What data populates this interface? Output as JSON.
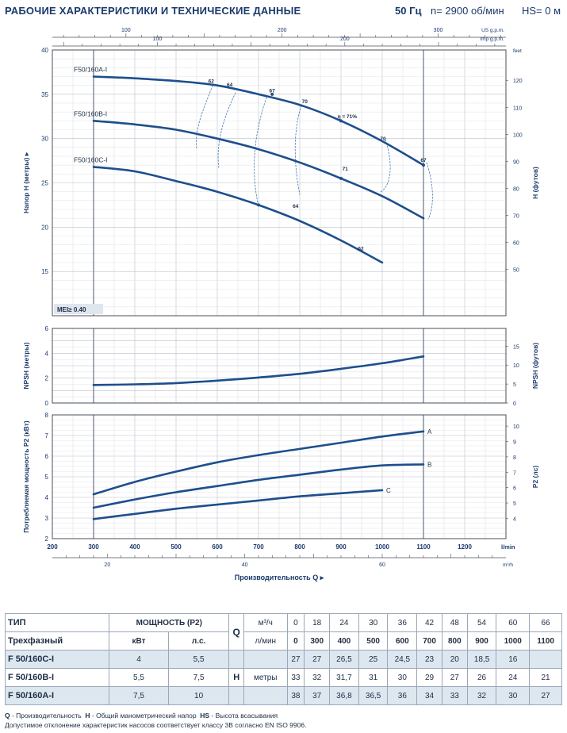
{
  "header": {
    "title": "РАБОЧИЕ ХАРАКТЕРИСТИКИ И ТЕХНИЧЕСКИЕ ДАННЫЕ",
    "frequency": "50 Гц",
    "speed": "n= 2900 об/мин",
    "suction_head": "HS= 0 м"
  },
  "chart_data": [
    {
      "type": "line",
      "id": "head",
      "ylabel": "Напор Н (метры)",
      "ylabel_right": "H (футов)",
      "x_unit": "l/min",
      "xlim": [
        200,
        1300
      ],
      "ylim": [
        10,
        40
      ],
      "y_ticks": [
        15,
        20,
        25,
        30,
        35,
        40
      ],
      "right_ticks": [
        50,
        60,
        70,
        80,
        90,
        100,
        110,
        120
      ],
      "right_unit": "feet",
      "top_axis_us_label": "US g.p.m.",
      "top_axis_us_ticks": [
        100,
        200,
        300
      ],
      "top_axis_imp_label": "Imp g.p.m.",
      "top_axis_imp_ticks": [
        100,
        200
      ],
      "mei_label": "MEI≥ 0.40",
      "grid": true,
      "series": [
        {
          "name": "F50/160A-I",
          "x": [
            300,
            400,
            500,
            600,
            700,
            800,
            900,
            1000,
            1100
          ],
          "y": [
            37,
            36.8,
            36.5,
            36,
            35,
            33.8,
            32,
            29.7,
            27
          ]
        },
        {
          "name": "F50/160B-I",
          "x": [
            300,
            400,
            500,
            600,
            700,
            800,
            900,
            1000,
            1100
          ],
          "y": [
            32,
            31.6,
            31,
            30,
            28.8,
            27.3,
            25.5,
            23.5,
            21
          ]
        },
        {
          "name": "F50/160C-I",
          "x": [
            300,
            400,
            500,
            600,
            700,
            800,
            900,
            1000
          ],
          "y": [
            26.8,
            26.3,
            25.2,
            24,
            22.5,
            20.7,
            18.5,
            16
          ]
        }
      ],
      "efficiency_labels": [
        {
          "label": "62",
          "x": 585,
          "y": 36.2
        },
        {
          "label": "64",
          "x": 630,
          "y": 35.8
        },
        {
          "label": "67",
          "x": 733,
          "y": 35.1
        },
        {
          "label": "70",
          "x": 812,
          "y": 33.9
        },
        {
          "label": "η = 71%",
          "x": 915,
          "y": 32.2
        },
        {
          "label": "70",
          "x": 1002,
          "y": 29.7
        },
        {
          "label": "67",
          "x": 1100,
          "y": 27.3
        },
        {
          "label": "71",
          "x": 910,
          "y": 26.3
        },
        {
          "label": "64",
          "x": 790,
          "y": 22.1
        },
        {
          "label": "62",
          "x": 948,
          "y": 17.3
        }
      ]
    },
    {
      "type": "line",
      "id": "npsh",
      "ylabel": "NPSH (метры)",
      "ylabel_right": "NPSH (футов)",
      "ylim": [
        0,
        6
      ],
      "y_ticks": [
        0,
        2,
        4,
        6
      ],
      "right_ticks": [
        0,
        5,
        10,
        15
      ],
      "series": [
        {
          "name": "NPSH",
          "x": [
            300,
            400,
            500,
            600,
            700,
            800,
            900,
            1000,
            1100
          ],
          "y": [
            1.45,
            1.5,
            1.6,
            1.8,
            2.05,
            2.35,
            2.75,
            3.2,
            3.75
          ]
        }
      ]
    },
    {
      "type": "line",
      "id": "power",
      "ylabel": "Потребляемая мощность P2 (кВт)",
      "ylabel_right": "P2 (лс)",
      "xlabel": "Производительность Q",
      "x_unit": "l/min",
      "x_ticks": [
        200,
        300,
        400,
        500,
        600,
        700,
        800,
        900,
        1000,
        1100,
        1200
      ],
      "x_unit_bottom": "m³/h",
      "x_ticks_m3h": [
        20,
        40,
        60
      ],
      "ylim": [
        2,
        8
      ],
      "y_ticks": [
        2,
        3,
        4,
        5,
        6,
        7,
        8
      ],
      "right_ticks": [
        4,
        5,
        6,
        7,
        8,
        9,
        10
      ],
      "series": [
        {
          "name": "A",
          "x": [
            300,
            400,
            500,
            600,
            700,
            800,
            900,
            1000,
            1100
          ],
          "y": [
            4.15,
            4.75,
            5.25,
            5.7,
            6.05,
            6.35,
            6.65,
            6.95,
            7.2
          ]
        },
        {
          "name": "B",
          "x": [
            300,
            400,
            500,
            600,
            700,
            800,
            900,
            1000,
            1100
          ],
          "y": [
            3.5,
            3.9,
            4.25,
            4.55,
            4.85,
            5.1,
            5.35,
            5.55,
            5.6
          ]
        },
        {
          "name": "C",
          "x": [
            300,
            400,
            500,
            600,
            700,
            800,
            900,
            1000
          ],
          "y": [
            2.95,
            3.2,
            3.45,
            3.65,
            3.85,
            4.05,
            4.2,
            4.35
          ]
        }
      ]
    }
  ],
  "table": {
    "type_label": "ТИП",
    "phase_label": "Трехфазный",
    "power_label": "МОЩНОСТЬ (P2)",
    "kw_label": "кВт",
    "hp_label": "л.с.",
    "q_label": "Q",
    "q_unit1": "м³/ч",
    "q_unit2": "л/мин",
    "h_label": "H",
    "h_unit": "метры",
    "q_m3h": [
      "0",
      "18",
      "24",
      "30",
      "36",
      "42",
      "48",
      "54",
      "60",
      "66"
    ],
    "q_lmin": [
      "0",
      "300",
      "400",
      "500",
      "600",
      "700",
      "800",
      "900",
      "1000",
      "1100"
    ],
    "rows": [
      {
        "model": "F 50/160C-I",
        "kw": "4",
        "hp": "5,5",
        "h": [
          "27",
          "27",
          "26,5",
          "25",
          "24,5",
          "23",
          "20",
          "18,5",
          "16",
          ""
        ]
      },
      {
        "model": "F 50/160B-I",
        "kw": "5,5",
        "hp": "7,5",
        "h": [
          "33",
          "32",
          "31,7",
          "31",
          "30",
          "29",
          "27",
          "26",
          "24",
          "21"
        ]
      },
      {
        "model": "F 50/160A-I",
        "kw": "7,5",
        "hp": "10",
        "h": [
          "38",
          "37",
          "36,8",
          "36,5",
          "36",
          "34",
          "33",
          "32",
          "30",
          "27"
        ]
      }
    ]
  },
  "footnote": {
    "q_abbr": "Q",
    "q_text": " - Производительность",
    "h_abbr": "H",
    "h_text": " - Общий манометрический напор",
    "hs_abbr": "HS",
    "hs_text": " - Высота всасывания",
    "tolerance": "Допустимое отклонение характеристик насосов соответствует классу 3B согласно EN ISO 9906."
  },
  "colors": {
    "curve": "#1d4f8c",
    "text": "#1b3a6b",
    "grid": "#c6ccd4",
    "axis": "#4a4f57",
    "shade": "#dde7f0"
  }
}
